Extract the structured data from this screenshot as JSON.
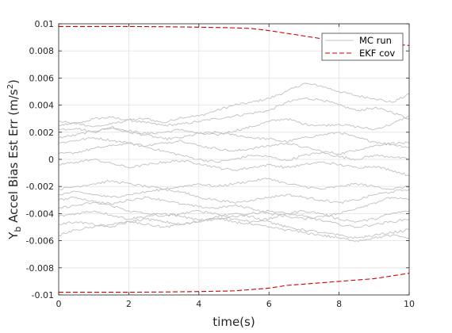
{
  "chart_data": {
    "type": "line",
    "xlabel": "time(s)",
    "ylabel": {
      "main": "Y",
      "sub": "b",
      "rest": " Accel Bias Est Err (m/s",
      "sup": "2",
      "end": ")"
    },
    "xlim": [
      0,
      10
    ],
    "ylim": [
      -0.01,
      0.01
    ],
    "xticks": [
      0,
      2,
      4,
      6,
      8,
      10
    ],
    "yticks": [
      -0.01,
      -0.008,
      -0.006,
      -0.004,
      -0.002,
      0,
      0.002,
      0.004,
      0.006,
      0.008,
      0.01
    ],
    "ytick_labels": [
      "-0.01",
      "-0.008",
      "-0.006",
      "-0.004",
      "-0.002",
      "0",
      "0.002",
      "0.004",
      "0.006",
      "0.008",
      "0.01"
    ],
    "grid": true,
    "legend": {
      "position": "top-right",
      "entries": [
        {
          "label": "MC run",
          "style": "solid",
          "color": "#c0c0c0"
        },
        {
          "label": "EKF cov",
          "style": "dashed",
          "color": "#cc0000"
        }
      ]
    },
    "ekf_cov": {
      "color": "#cc0000",
      "x": [
        0,
        1,
        2,
        3,
        4,
        5,
        5.5,
        6,
        6.5,
        7,
        7.5,
        8,
        8.5,
        9,
        9.5,
        10
      ],
      "upper": [
        0.0098,
        0.0098,
        0.0098,
        0.00978,
        0.00975,
        0.0097,
        0.00965,
        0.0095,
        0.0093,
        0.0091,
        0.0089,
        0.0088,
        0.0087,
        0.0086,
        0.0085,
        0.0084
      ],
      "lower": [
        -0.0098,
        -0.0098,
        -0.0098,
        -0.00978,
        -0.00975,
        -0.0097,
        -0.0096,
        -0.0095,
        -0.0093,
        -0.0092,
        -0.0091,
        -0.009,
        -0.0089,
        -0.0088,
        -0.0086,
        -0.0084
      ]
    },
    "mc_runs": {
      "color": "#c0c0c0",
      "x": [
        0,
        0.5,
        1,
        1.5,
        2,
        2.5,
        3,
        3.5,
        4,
        4.5,
        5,
        5.5,
        6,
        6.5,
        7,
        7.5,
        8,
        8.5,
        9,
        9.5,
        10
      ],
      "series": [
        [
          0.0028,
          0.0026,
          0.003,
          0.0031,
          0.0029,
          0.003,
          0.0027,
          0.0031,
          0.0032,
          0.0036,
          0.004,
          0.0042,
          0.0045,
          0.005,
          0.0056,
          0.0054,
          0.005,
          0.0047,
          0.0045,
          0.0042,
          0.0048
        ],
        [
          0.0025,
          0.0027,
          0.0024,
          0.0026,
          0.0029,
          0.0027,
          0.0025,
          0.0026,
          0.0028,
          0.003,
          0.0032,
          0.0034,
          0.0036,
          0.0042,
          0.0045,
          0.0044,
          0.004,
          0.0036,
          0.0038,
          0.0035,
          0.003
        ],
        [
          0.0022,
          0.0023,
          0.002,
          0.0024,
          0.0021,
          0.0019,
          0.002,
          0.0022,
          0.0019,
          0.0018,
          0.0021,
          0.0024,
          0.0028,
          0.003,
          0.0026,
          0.0025,
          0.0026,
          0.0024,
          0.0022,
          0.0026,
          0.0032
        ],
        [
          0.0016,
          0.0018,
          0.0021,
          0.0023,
          0.002,
          0.0018,
          0.0015,
          0.0016,
          0.0019,
          0.002,
          0.0018,
          0.0016,
          0.0015,
          0.0013,
          0.0016,
          0.0018,
          0.002,
          0.0016,
          0.0013,
          0.0011,
          0.0009
        ],
        [
          0.0012,
          0.0014,
          0.0016,
          0.0014,
          0.0012,
          0.001,
          0.0012,
          0.0014,
          0.001,
          0.0008,
          0.0006,
          0.0008,
          0.001,
          0.0012,
          0.0009,
          0.0006,
          0.0004,
          0.0007,
          0.001,
          0.0012,
          0.0012
        ],
        [
          0.0004,
          0.0005,
          0.0008,
          0.001,
          0.0012,
          0.0009,
          0.0006,
          0.0003,
          0.0,
          -0.0002,
          0.0,
          0.0003,
          0.0002,
          -0.0001,
          0.0003,
          0.0005,
          0.0002,
          0.0,
          0.0003,
          0.0002,
          0.0
        ],
        [
          -0.0004,
          -0.0002,
          0.0,
          -0.0003,
          -0.0006,
          -0.0004,
          -0.0002,
          -0.0001,
          -0.0003,
          -0.0006,
          -0.0008,
          -0.0006,
          -0.0004,
          -0.0006,
          -0.0004,
          -0.0002,
          -0.0004,
          -0.0006,
          -0.0005,
          -0.0008,
          -0.0012
        ],
        [
          -0.0022,
          -0.002,
          -0.0018,
          -0.0016,
          -0.0018,
          -0.002,
          -0.0022,
          -0.002,
          -0.0018,
          -0.002,
          -0.0018,
          -0.0016,
          -0.0014,
          -0.0018,
          -0.002,
          -0.0022,
          -0.002,
          -0.0018,
          -0.002,
          -0.0022,
          -0.002
        ],
        [
          -0.0026,
          -0.0024,
          -0.0026,
          -0.0028,
          -0.0026,
          -0.0024,
          -0.0022,
          -0.0024,
          -0.0028,
          -0.003,
          -0.0032,
          -0.003,
          -0.0028,
          -0.0026,
          -0.0028,
          -0.003,
          -0.0032,
          -0.003,
          -0.0026,
          -0.0024,
          -0.0022
        ],
        [
          -0.003,
          -0.0028,
          -0.0031,
          -0.0033,
          -0.003,
          -0.0028,
          -0.003,
          -0.0033,
          -0.0035,
          -0.0036,
          -0.0034,
          -0.0036,
          -0.004,
          -0.0042,
          -0.0044,
          -0.0042,
          -0.004,
          -0.0036,
          -0.0032,
          -0.0028,
          -0.003
        ],
        [
          -0.0036,
          -0.0034,
          -0.0032,
          -0.0034,
          -0.0038,
          -0.004,
          -0.0042,
          -0.004,
          -0.0038,
          -0.004,
          -0.0044,
          -0.0046,
          -0.0044,
          -0.004,
          -0.0038,
          -0.004,
          -0.0044,
          -0.0046,
          -0.0044,
          -0.004,
          -0.0038
        ],
        [
          -0.0042,
          -0.004,
          -0.0038,
          -0.0041,
          -0.0044,
          -0.0042,
          -0.004,
          -0.0042,
          -0.0045,
          -0.0044,
          -0.0042,
          -0.004,
          -0.0038,
          -0.004,
          -0.0042,
          -0.0045,
          -0.0048,
          -0.005,
          -0.0048,
          -0.0046,
          -0.0044
        ],
        [
          -0.0048,
          -0.0046,
          -0.0048,
          -0.005,
          -0.0046,
          -0.0044,
          -0.0046,
          -0.0048,
          -0.0046,
          -0.0042,
          -0.004,
          -0.0042,
          -0.0046,
          -0.005,
          -0.0052,
          -0.0054,
          -0.0056,
          -0.0058,
          -0.0056,
          -0.0054,
          -0.0052
        ],
        [
          -0.0056,
          -0.0052,
          -0.005,
          -0.0048,
          -0.0046,
          -0.0048,
          -0.005,
          -0.0048,
          -0.0046,
          -0.0044,
          -0.0046,
          -0.0048,
          -0.005,
          -0.0052,
          -0.0054,
          -0.0056,
          -0.0058,
          -0.006,
          -0.0058,
          -0.0056,
          -0.0058
        ]
      ]
    }
  }
}
